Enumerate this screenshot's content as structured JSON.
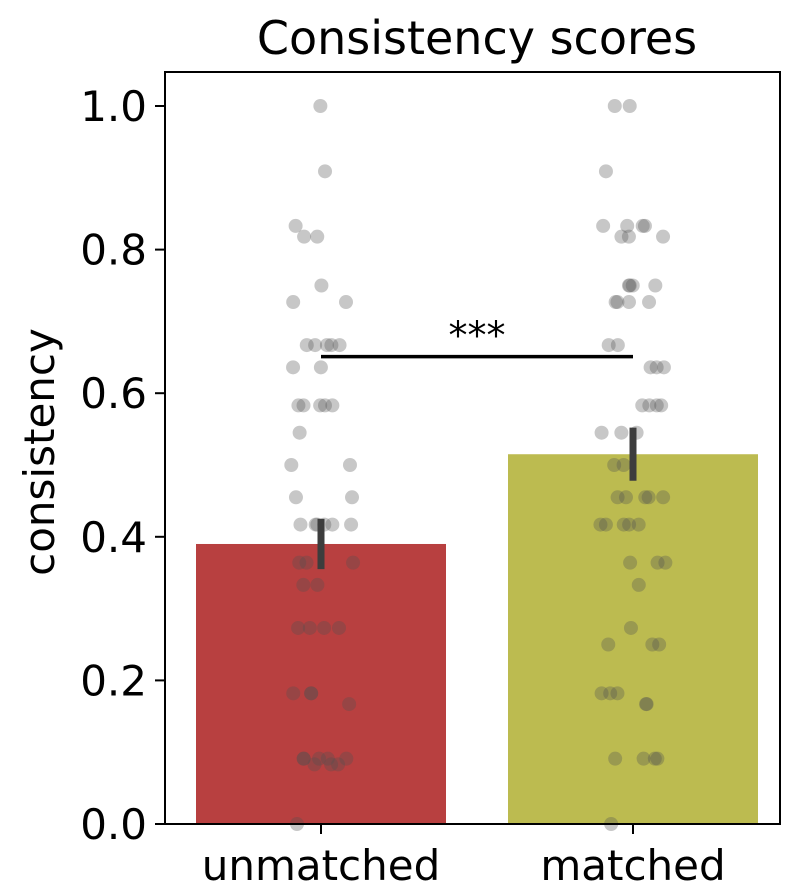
{
  "chart_data": {
    "type": "bar",
    "title": "Consistency scores",
    "xlabel": "",
    "ylabel": "consistency",
    "ylim": [
      0,
      1.05
    ],
    "yticks": [
      0.0,
      0.2,
      0.4,
      0.6,
      0.8,
      1.0
    ],
    "ytick_labels": [
      "0.0",
      "0.2",
      "0.4",
      "0.6",
      "0.8",
      "1.0"
    ],
    "categories": [
      "unmatched",
      "matched"
    ],
    "values": [
      0.39,
      0.515
    ],
    "error_bars": [
      [
        0.355,
        0.425
      ],
      [
        0.478,
        0.552
      ]
    ],
    "colors": [
      "#b84040",
      "#bcbb50"
    ],
    "significance": {
      "label": "***",
      "between": [
        "unmatched",
        "matched"
      ],
      "y": 0.651
    },
    "points": [
      [
        1.0,
        0.909,
        0.833,
        0.818,
        0.818,
        0.75,
        0.727,
        0.727,
        0.667,
        0.667,
        0.667,
        0.667,
        0.667,
        0.636,
        0.636,
        0.583,
        0.583,
        0.583,
        0.583,
        0.583,
        0.545,
        0.5,
        0.5,
        0.455,
        0.455,
        0.417,
        0.417,
        0.417,
        0.417,
        0.417,
        0.417,
        0.364,
        0.364,
        0.364,
        0.333,
        0.333,
        0.273,
        0.273,
        0.273,
        0.273,
        0.182,
        0.182,
        0.182,
        0.167,
        0.091,
        0.091,
        0.091,
        0.091,
        0.091,
        0.083,
        0.083,
        0.083,
        0.0
      ],
      [
        1.0,
        1.0,
        0.909,
        0.833,
        0.833,
        0.833,
        0.833,
        0.818,
        0.818,
        0.818,
        0.75,
        0.75,
        0.75,
        0.75,
        0.727,
        0.727,
        0.727,
        0.727,
        0.667,
        0.667,
        0.636,
        0.636,
        0.636,
        0.583,
        0.583,
        0.583,
        0.583,
        0.545,
        0.545,
        0.545,
        0.5,
        0.5,
        0.455,
        0.455,
        0.455,
        0.455,
        0.455,
        0.417,
        0.417,
        0.417,
        0.417,
        0.417,
        0.364,
        0.364,
        0.364,
        0.333,
        0.273,
        0.25,
        0.25,
        0.25,
        0.182,
        0.182,
        0.182,
        0.167,
        0.167,
        0.091,
        0.091,
        0.091,
        0.091,
        0.0
      ]
    ]
  }
}
